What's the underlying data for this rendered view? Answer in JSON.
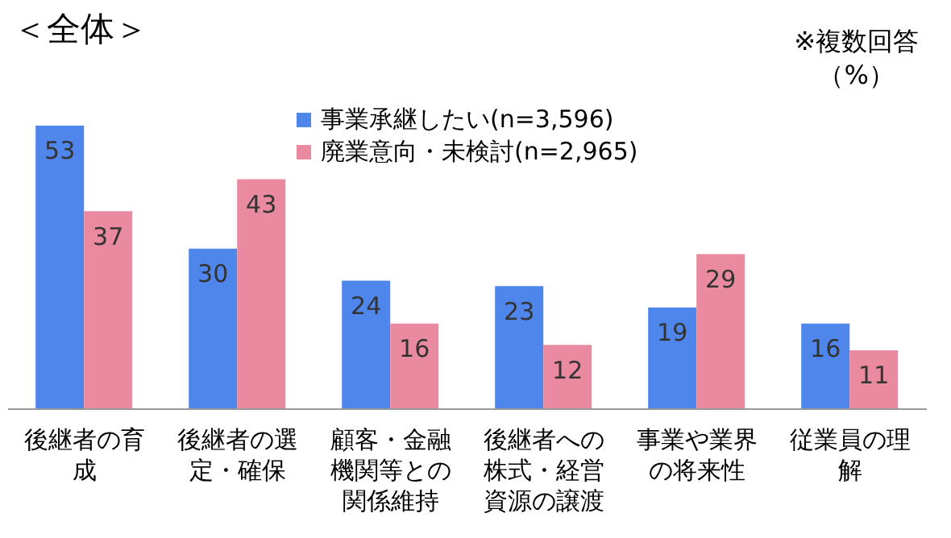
{
  "chart_data": {
    "type": "bar",
    "title": "＜全体＞",
    "annotations": [
      "※複数回答",
      "（%）"
    ],
    "categories": [
      "後継者の育成",
      "後継者の選定・確保",
      "顧客・金融機関等との関係維持",
      "後継者への株式・経営資源の譲渡",
      "事業や業界の将来性",
      "従業員の理解"
    ],
    "series": [
      {
        "name": "事業承継したい(n=3,596)",
        "color": "#4f86ec",
        "values": [
          53,
          30,
          24,
          23,
          19,
          16
        ]
      },
      {
        "name": "廃業意向・未検討(n=2,965)",
        "color": "#ea8aa0",
        "values": [
          37,
          43,
          16,
          12,
          29,
          11
        ]
      }
    ],
    "data_labels": true,
    "legend": "top right",
    "marker": "square",
    "grid": false
  }
}
